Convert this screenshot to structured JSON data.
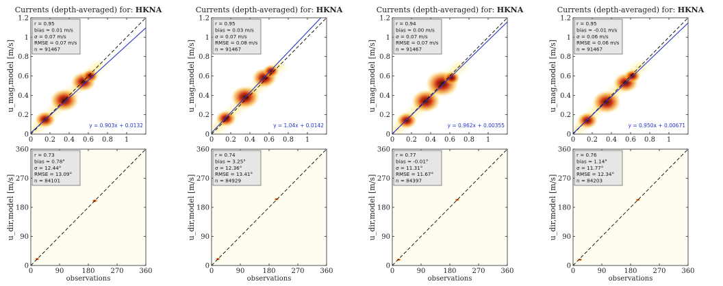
{
  "figure": {
    "title_prefix": "Currents (depth-averaged) for:",
    "station": "HKNA"
  },
  "colors": {
    "density_low": "#fff9d6",
    "density_mid": "#f07a1a",
    "density_high": "#3a0000",
    "fit_line": "#2232c8",
    "one_to_one": "#000000",
    "stats_box": "#e6e6e6"
  },
  "chart_data": [
    {
      "type": "heatmap",
      "row": "speed",
      "col": 0,
      "ylabel": "u_mag,model [m/s]",
      "xlabel": "",
      "xlim": [
        0,
        1.2
      ],
      "ylim": [
        0,
        1.2
      ],
      "xticks": [
        0,
        0.2,
        0.4,
        0.6,
        0.8,
        1
      ],
      "yticks": [
        0,
        0.2,
        0.4,
        0.6,
        0.8,
        1,
        1.2
      ],
      "stats": [
        "r = 0.95",
        "bias = 0.01 m/s",
        "σ = 0.07 m/s",
        "RMSE = 0.07 m/s",
        "n = 91467"
      ],
      "fit_label": "y = 0.903x + 0.0132",
      "fit": {
        "slope": 0.903,
        "intercept": 0.0132
      },
      "density": [
        {
          "x": 0.15,
          "y": 0.15,
          "w": 0.05
        },
        {
          "x": 0.35,
          "y": 0.35,
          "w": 0.07
        },
        {
          "x": 0.55,
          "y": 0.54,
          "w": 0.06
        },
        {
          "x": 0.62,
          "y": 0.6,
          "w": 0.04
        }
      ]
    },
    {
      "type": "heatmap",
      "row": "speed",
      "col": 1,
      "ylabel": "u_mag,model [m/s]",
      "xlabel": "",
      "xlim": [
        0,
        1.2
      ],
      "ylim": [
        0,
        1.2
      ],
      "xticks": [
        0,
        0.2,
        0.4,
        0.6,
        0.8,
        1
      ],
      "yticks": [
        0,
        0.2,
        0.4,
        0.6,
        0.8,
        1,
        1.2
      ],
      "stats": [
        "r = 0.95",
        "bias = 0.03 m/s",
        "σ = 0.07 m/s",
        "RMSE = 0.08 m/s",
        "n = 91467"
      ],
      "fit_label": "y = 1.04x + 0.0142",
      "fit": {
        "slope": 1.04,
        "intercept": 0.0142
      },
      "density": [
        {
          "x": 0.15,
          "y": 0.16,
          "w": 0.05
        },
        {
          "x": 0.35,
          "y": 0.38,
          "w": 0.07
        },
        {
          "x": 0.55,
          "y": 0.58,
          "w": 0.06
        },
        {
          "x": 0.62,
          "y": 0.65,
          "w": 0.04
        }
      ]
    },
    {
      "type": "heatmap",
      "row": "speed",
      "col": 2,
      "ylabel": "u_mag,model [m/s]",
      "xlabel": "",
      "xlim": [
        0,
        1.2
      ],
      "ylim": [
        0,
        1.2
      ],
      "xticks": [
        0,
        0.2,
        0.4,
        0.6,
        0.8,
        1
      ],
      "yticks": [
        0,
        0.2,
        0.4,
        0.6,
        0.8,
        1,
        1.2
      ],
      "stats": [
        "r = 0.94",
        "bias = 0.00 m/s",
        "σ = 0.07 m/s",
        "RMSE = 0.07 m/s",
        "n = 91467"
      ],
      "fit_label": "y = 0.962x + 0.00355",
      "fit": {
        "slope": 0.962,
        "intercept": 0.00355
      },
      "density": [
        {
          "x": 0.15,
          "y": 0.14,
          "w": 0.05
        },
        {
          "x": 0.35,
          "y": 0.34,
          "w": 0.07
        },
        {
          "x": 0.52,
          "y": 0.52,
          "w": 0.08
        },
        {
          "x": 0.62,
          "y": 0.58,
          "w": 0.04
        }
      ]
    },
    {
      "type": "heatmap",
      "row": "speed",
      "col": 3,
      "ylabel": "u_mag,model [m/s]",
      "xlabel": "",
      "xlim": [
        0,
        1.2
      ],
      "ylim": [
        0,
        1.2
      ],
      "xticks": [
        0,
        0.2,
        0.4,
        0.6,
        0.8,
        1
      ],
      "yticks": [
        0,
        0.2,
        0.4,
        0.6,
        0.8,
        1,
        1.2
      ],
      "stats": [
        "r = 0.95",
        "bias = -0.01 m/s",
        "σ = 0.06 m/s",
        "RMSE = 0.06 m/s",
        "n = 91467"
      ],
      "fit_label": "y = 0.950x + 0.00671",
      "fit": {
        "slope": 0.95,
        "intercept": 0.00671
      },
      "density": [
        {
          "x": 0.15,
          "y": 0.14,
          "w": 0.05
        },
        {
          "x": 0.35,
          "y": 0.33,
          "w": 0.07
        },
        {
          "x": 0.55,
          "y": 0.53,
          "w": 0.06
        },
        {
          "x": 0.62,
          "y": 0.6,
          "w": 0.04
        }
      ]
    },
    {
      "type": "heatmap",
      "row": "direction",
      "col": 0,
      "ylabel": "u_dir,model [m/s]",
      "xlabel": "observations",
      "xlim": [
        0,
        360
      ],
      "ylim": [
        0,
        360
      ],
      "xticks": [
        0,
        90,
        180,
        270,
        360
      ],
      "yticks": [
        0,
        90,
        180,
        270,
        360
      ],
      "stats": [
        "r = 0.73",
        "bias = 0.78°",
        "σ = 12.44°",
        "RMSE = 13.09°",
        "n = 84101"
      ],
      "fit_label": "",
      "fit": null,
      "density": [
        {
          "x": 20,
          "y": 20,
          "w": 5
        },
        {
          "x": 200,
          "y": 200,
          "w": 6
        }
      ]
    },
    {
      "type": "heatmap",
      "row": "direction",
      "col": 1,
      "ylabel": "u_dir,model [m/s]",
      "xlabel": "observations",
      "xlim": [
        0,
        360
      ],
      "ylim": [
        0,
        360
      ],
      "xticks": [
        0,
        90,
        180,
        270,
        360
      ],
      "yticks": [
        0,
        90,
        180,
        270,
        360
      ],
      "stats": [
        "r = 0.74",
        "bias = 3.25°",
        "σ = 12.36°",
        "RMSE = 13.41°",
        "n = 84929"
      ],
      "fit_label": "",
      "fit": null,
      "density": [
        {
          "x": 20,
          "y": 20,
          "w": 5
        },
        {
          "x": 203,
          "y": 205,
          "w": 5
        }
      ]
    },
    {
      "type": "heatmap",
      "row": "direction",
      "col": 2,
      "ylabel": "u_dir,model [m/s]",
      "xlabel": "observations",
      "xlim": [
        0,
        360
      ],
      "ylim": [
        0,
        360
      ],
      "xticks": [
        0,
        90,
        180,
        270,
        360
      ],
      "yticks": [
        0,
        90,
        180,
        270,
        360
      ],
      "stats": [
        "r = 0.77",
        "bias = -0.01°",
        "σ = 11.31°",
        "RMSE = 11.67°",
        "n = 84397"
      ],
      "fit_label": "",
      "fit": null,
      "density": [
        {
          "x": 20,
          "y": 18,
          "w": 5
        },
        {
          "x": 203,
          "y": 203,
          "w": 5
        }
      ]
    },
    {
      "type": "heatmap",
      "row": "direction",
      "col": 3,
      "ylabel": "u_dir,model [m/s]",
      "xlabel": "observations",
      "xlim": [
        0,
        360
      ],
      "ylim": [
        0,
        360
      ],
      "xticks": [
        0,
        90,
        180,
        270,
        360
      ],
      "yticks": [
        0,
        90,
        180,
        270,
        360
      ],
      "stats": [
        "r = 0.76",
        "bias = 1.14°",
        "σ = 11.77°",
        "RMSE = 12.34°",
        "n = 84203"
      ],
      "fit_label": "",
      "fit": null,
      "density": [
        {
          "x": 22,
          "y": 18,
          "w": 5
        },
        {
          "x": 203,
          "y": 203,
          "w": 5
        }
      ]
    }
  ]
}
